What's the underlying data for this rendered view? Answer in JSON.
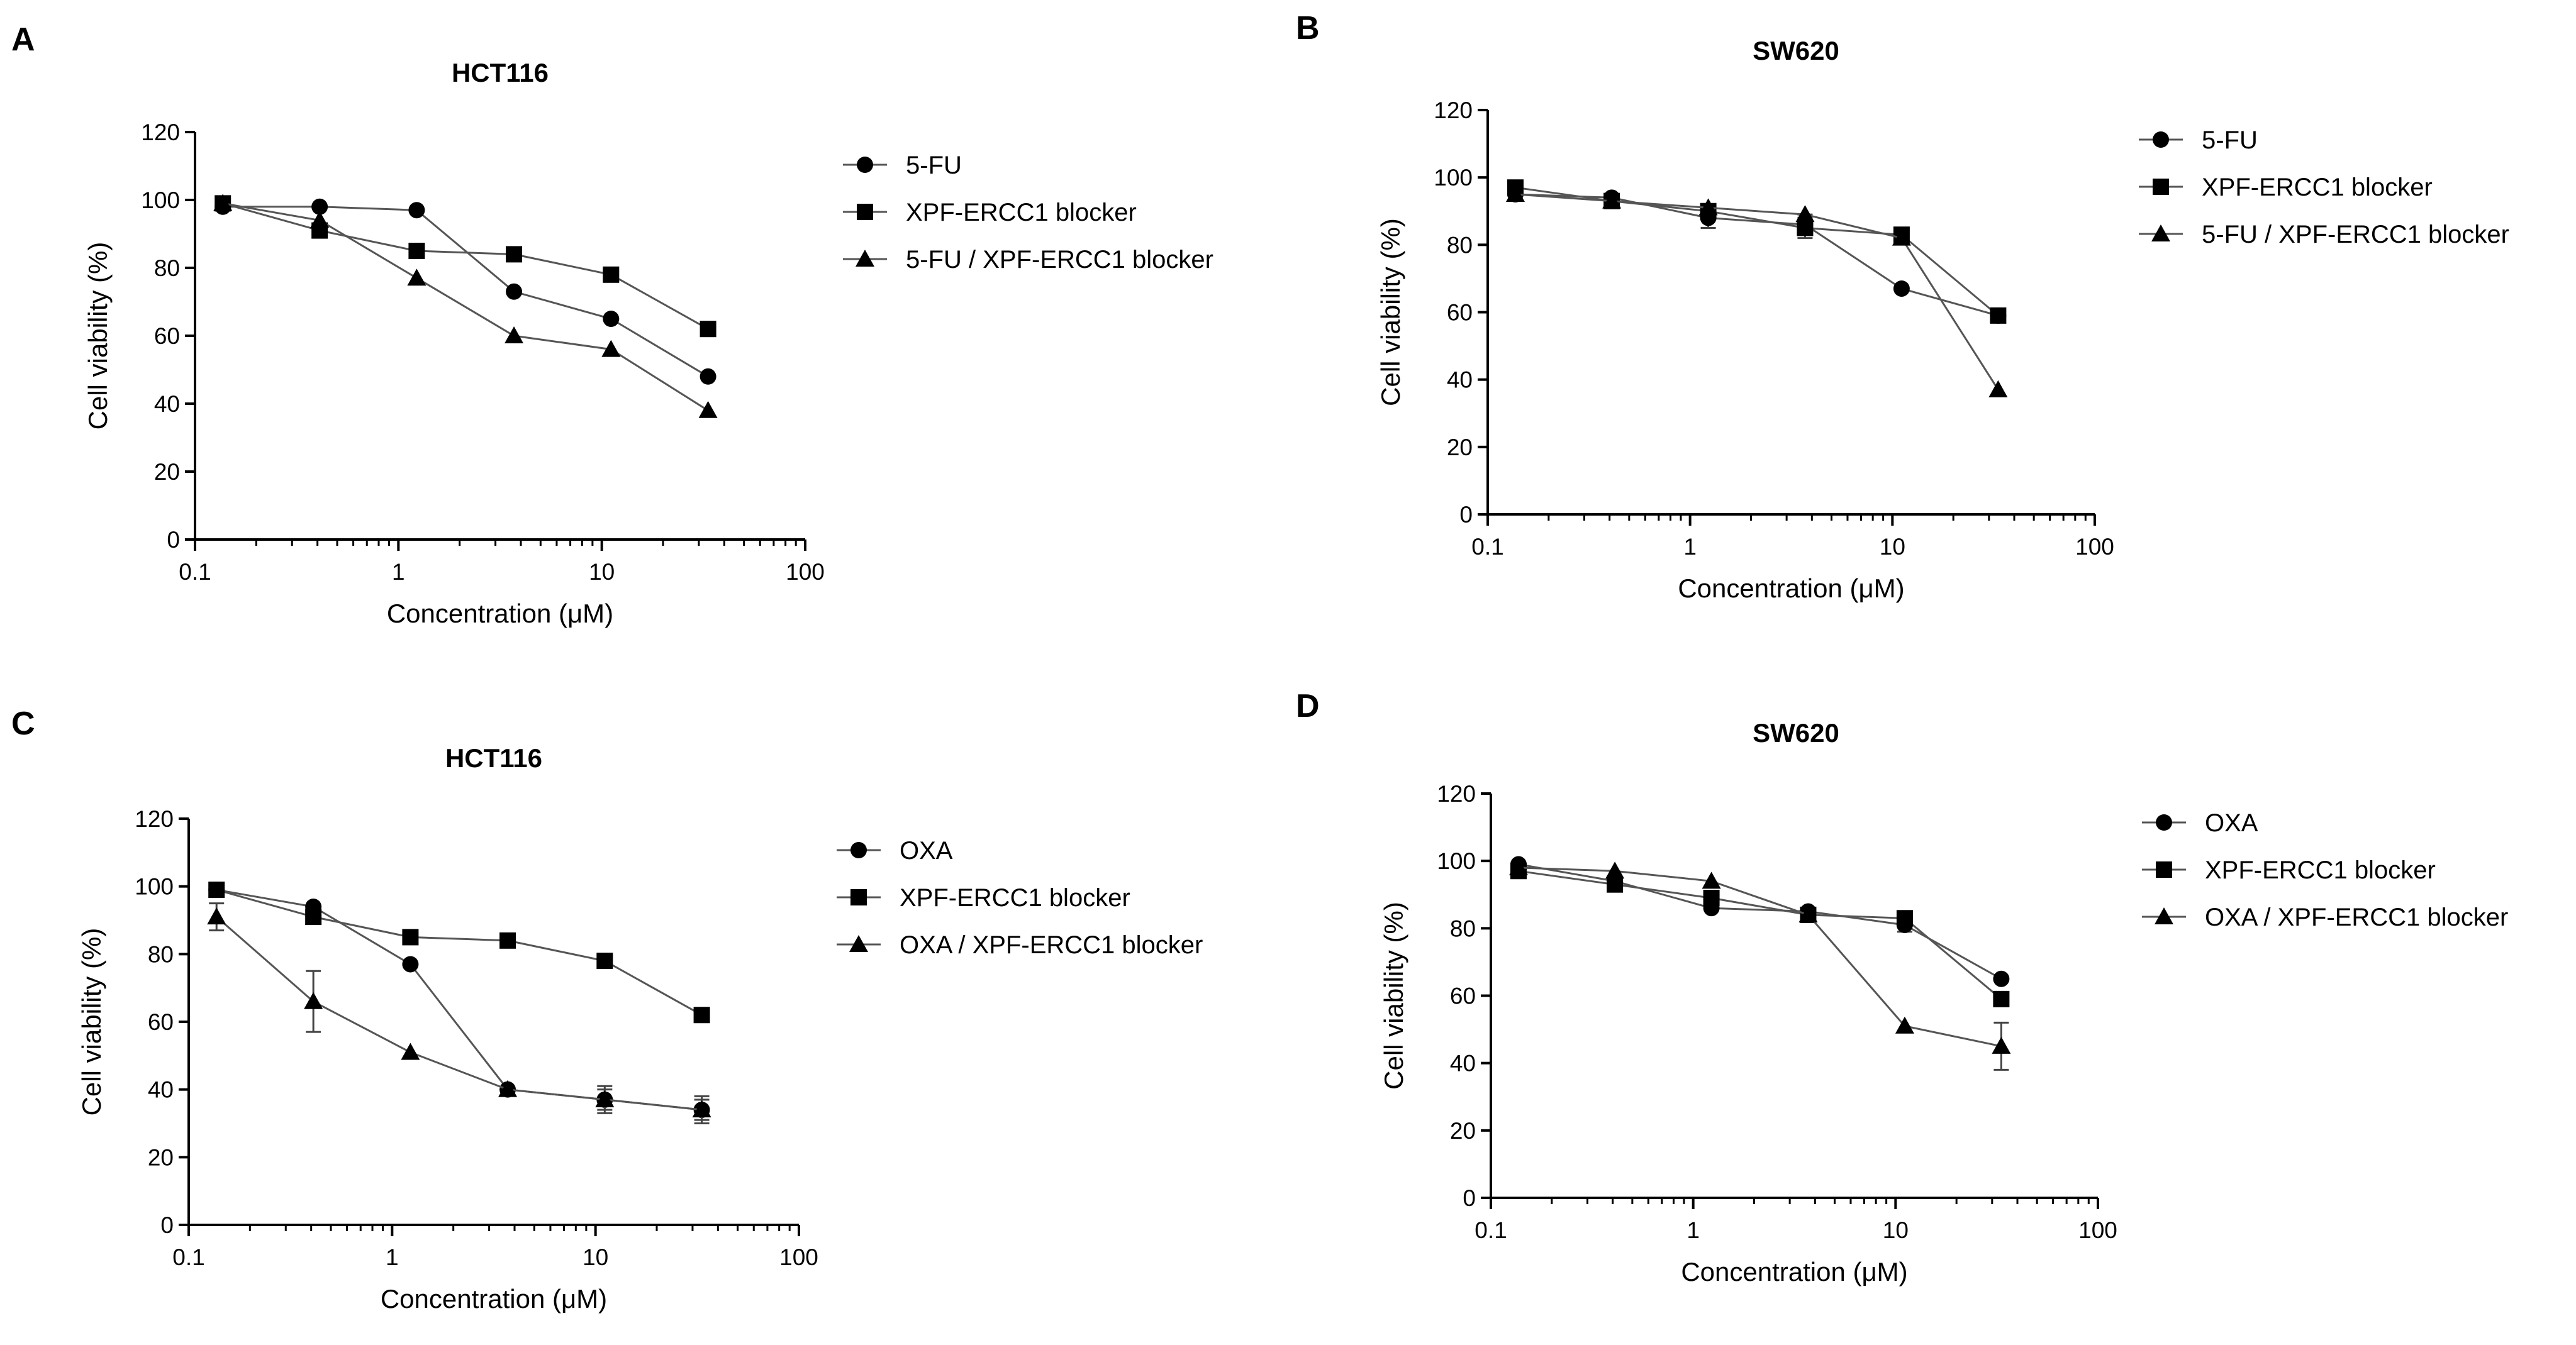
{
  "chart_data": [
    {
      "panel": "A",
      "type": "line",
      "title": "HCT116",
      "xlabel": "Concentration (μM)",
      "ylabel": "Cell viability (%)",
      "xscale": "log",
      "xlim": [
        0.1,
        100
      ],
      "ylim": [
        0,
        120
      ],
      "xticks": [
        0.1,
        1,
        10,
        100
      ],
      "xtick_labels": [
        "0.1",
        "1",
        "10",
        "100"
      ],
      "yticks": [
        0,
        20,
        40,
        60,
        80,
        100,
        120
      ],
      "ytick_labels": [
        "0",
        "20",
        "40",
        "60",
        "80",
        "100",
        "120"
      ],
      "legend_position": "right",
      "x": [
        0.137,
        0.41,
        1.23,
        3.7,
        11.1,
        33.3
      ],
      "series": [
        {
          "name": "5-FU",
          "marker": "circle",
          "values": [
            98,
            98,
            97,
            73,
            65,
            48
          ],
          "errors": [
            1,
            1,
            1,
            1,
            1,
            1
          ]
        },
        {
          "name": "XPF-ERCC1 blocker",
          "marker": "square",
          "values": [
            99,
            91,
            85,
            84,
            78,
            62
          ],
          "errors": [
            1,
            1,
            1,
            1,
            1,
            1
          ]
        },
        {
          "name": "5-FU / XPF-ERCC1 blocker",
          "marker": "triangle",
          "values": [
            99,
            94,
            77,
            60,
            56,
            38
          ],
          "errors": [
            1,
            1,
            1,
            1,
            1,
            1
          ]
        }
      ]
    },
    {
      "panel": "B",
      "type": "line",
      "title": "SW620",
      "xlabel": "Concentration (μM)",
      "ylabel": "Cell viability (%)",
      "xscale": "log",
      "xlim": [
        0.1,
        100
      ],
      "ylim": [
        0,
        120
      ],
      "xticks": [
        0.1,
        1,
        10,
        100
      ],
      "xtick_labels": [
        "0.1",
        "1",
        "10",
        "100"
      ],
      "yticks": [
        0,
        20,
        40,
        60,
        80,
        100,
        120
      ],
      "ytick_labels": [
        "0",
        "20",
        "40",
        "60",
        "80",
        "100",
        "120"
      ],
      "legend_position": "right",
      "x": [
        0.137,
        0.41,
        1.23,
        3.7,
        11.1,
        33.3
      ],
      "series": [
        {
          "name": "5-FU",
          "marker": "circle",
          "values": [
            95,
            94,
            88,
            86,
            67,
            59
          ],
          "errors": [
            1,
            1,
            3,
            3,
            1,
            1
          ]
        },
        {
          "name": "XPF-ERCC1 blocker",
          "marker": "square",
          "values": [
            97,
            93,
            90,
            85,
            83,
            59
          ],
          "errors": [
            1,
            1,
            2,
            3,
            1,
            1
          ]
        },
        {
          "name": "5-FU / XPF-ERCC1 blocker",
          "marker": "triangle",
          "values": [
            95,
            93,
            91,
            89,
            82,
            37
          ],
          "errors": [
            1,
            1,
            1,
            1,
            1,
            1
          ]
        }
      ]
    },
    {
      "panel": "C",
      "type": "line",
      "title": "HCT116",
      "xlabel": "Concentration (μM)",
      "ylabel": "Cell viability (%)",
      "xscale": "log",
      "xlim": [
        0.1,
        100
      ],
      "ylim": [
        0,
        120
      ],
      "xticks": [
        0.1,
        1,
        10,
        100
      ],
      "xtick_labels": [
        "0.1",
        "1",
        "10",
        "100"
      ],
      "yticks": [
        0,
        20,
        40,
        60,
        80,
        100,
        120
      ],
      "ytick_labels": [
        "0",
        "20",
        "40",
        "60",
        "80",
        "100",
        "120"
      ],
      "legend_position": "right",
      "x": [
        0.137,
        0.41,
        1.23,
        3.7,
        11.1,
        33.3
      ],
      "series": [
        {
          "name": "OXA",
          "marker": "circle",
          "values": [
            99,
            94,
            77,
            40,
            37,
            34
          ],
          "errors": [
            1,
            1,
            1,
            1,
            3,
            3
          ]
        },
        {
          "name": "XPF-ERCC1 blocker",
          "marker": "square",
          "values": [
            99,
            91,
            85,
            84,
            78,
            62
          ],
          "errors": [
            1,
            1,
            1,
            1,
            1,
            1
          ]
        },
        {
          "name": "OXA / XPF-ERCC1 blocker",
          "marker": "triangle",
          "values": [
            91,
            66,
            51,
            40,
            37,
            34
          ],
          "errors": [
            4,
            9,
            1,
            1,
            4,
            4
          ]
        }
      ]
    },
    {
      "panel": "D",
      "type": "line",
      "title": "SW620",
      "xlabel": "Concentration (μM)",
      "ylabel": "Cell viability (%)",
      "xscale": "log",
      "xlim": [
        0.1,
        100
      ],
      "ylim": [
        0,
        120
      ],
      "xticks": [
        0.1,
        1,
        10,
        100
      ],
      "xtick_labels": [
        "0.1",
        "1",
        "10",
        "100"
      ],
      "yticks": [
        0,
        20,
        40,
        60,
        80,
        100,
        120
      ],
      "ytick_labels": [
        "0",
        "20",
        "40",
        "60",
        "80",
        "100",
        "120"
      ],
      "legend_position": "right",
      "x": [
        0.137,
        0.41,
        1.23,
        3.7,
        11.1,
        33.3
      ],
      "series": [
        {
          "name": "OXA",
          "marker": "circle",
          "values": [
            99,
            94,
            86,
            85,
            81,
            65
          ],
          "errors": [
            1,
            1,
            1,
            1,
            2,
            1
          ]
        },
        {
          "name": "XPF-ERCC1 blocker",
          "marker": "square",
          "values": [
            97,
            93,
            89,
            84,
            83,
            59
          ],
          "errors": [
            1,
            1,
            1,
            1,
            1,
            1
          ]
        },
        {
          "name": "OXA / XPF-ERCC1 blocker",
          "marker": "triangle",
          "values": [
            98,
            97,
            94,
            84,
            51,
            45
          ],
          "errors": [
            1,
            1,
            1,
            1,
            1,
            7
          ]
        }
      ]
    }
  ]
}
